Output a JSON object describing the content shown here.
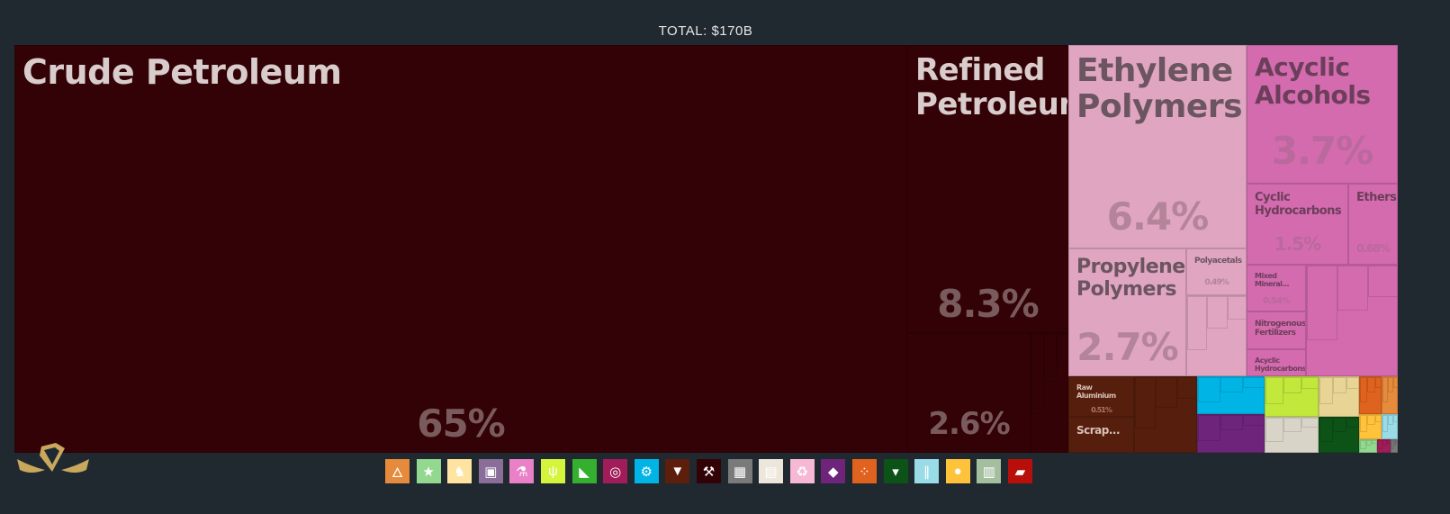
{
  "header": {
    "total": "TOTAL: $170B"
  },
  "chart_data": {
    "type": "treemap",
    "title": "TOTAL: $170B",
    "tiles": [
      {
        "name": "Crude Petroleum",
        "share_label": "65%",
        "share": 65,
        "color": "#330206"
      },
      {
        "name": "Refined Petroleum",
        "share_label": "8.3%",
        "share": 8.3,
        "color": "#330206"
      },
      {
        "name": "",
        "share_label": "2.6%",
        "share": 2.6,
        "color": "#330206"
      },
      {
        "name": "Ethylene Polymers",
        "share_label": "6.4%",
        "share": 6.4,
        "color": "#e0a5c1"
      },
      {
        "name": "Propylene Polymers",
        "share_label": "2.7%",
        "share": 2.7,
        "color": "#e0a5c1"
      },
      {
        "name": "Polyacetals",
        "share_label": "0.49%",
        "share": 0.49,
        "color": "#e0a5c1"
      },
      {
        "name": "Acyclic Alcohols",
        "share_label": "3.7%",
        "share": 3.7,
        "color": "#d36bae"
      },
      {
        "name": "Cyclic Hydrocarbons",
        "share_label": "1.5%",
        "share": 1.5,
        "color": "#d36bae"
      },
      {
        "name": "Ethers",
        "share_label": "0.68%",
        "share": 0.68,
        "color": "#d36bae"
      },
      {
        "name": "Mixed Mineral...",
        "share_label": "0.54%",
        "share": 0.54,
        "color": "#d36bae"
      },
      {
        "name": "Nitrogenous Fertilizers",
        "share_label": "",
        "color": "#d36bae"
      },
      {
        "name": "Acyclic Hydrocarbons",
        "share_label": "",
        "color": "#d36bae"
      },
      {
        "name": "Raw Aluminium",
        "share_label": "0.51%",
        "share": 0.51,
        "color": "#561e0c"
      },
      {
        "name": "Scrap...",
        "share_label": "",
        "color": "#561e0c"
      }
    ]
  },
  "colors": {
    "background": "#212930",
    "label": "#d9cccc",
    "pct_dark": "#7a5b5d",
    "pct_light": "#b3849a"
  },
  "legend": [
    {
      "icon": "bottle-fire-icon",
      "color": "#e68a3c"
    },
    {
      "icon": "star-figure-icon",
      "color": "#93d88f"
    },
    {
      "icon": "cow-icon",
      "color": "#ffe3a0"
    },
    {
      "icon": "picture-frame-icon",
      "color": "#8a6d99"
    },
    {
      "icon": "flask-icon",
      "color": "#ea80c8"
    },
    {
      "icon": "wheat-icon",
      "color": "#d4f53b"
    },
    {
      "icon": "shoe-icon",
      "color": "#35b02e"
    },
    {
      "icon": "gauge-icon",
      "color": "#a01d5a"
    },
    {
      "icon": "gears-icon",
      "color": "#00b5e6"
    },
    {
      "icon": "anvil-icon",
      "color": "#5e1e0c"
    },
    {
      "icon": "pickaxe-icon",
      "color": "#330206"
    },
    {
      "icon": "boxes-icon",
      "color": "#7a7a7a"
    },
    {
      "icon": "document-icon",
      "color": "#ede6da"
    },
    {
      "icon": "recycle-icon",
      "color": "#f7b8d6"
    },
    {
      "icon": "diamond-icon",
      "color": "#6e247a"
    },
    {
      "icon": "stones-icon",
      "color": "#e0621f"
    },
    {
      "icon": "shirt-icon",
      "color": "#0d5216"
    },
    {
      "icon": "road-icon",
      "color": "#9adbe8"
    },
    {
      "icon": "fruit-icon",
      "color": "#ffc23b"
    },
    {
      "icon": "cabinet-icon",
      "color": "#a3bf9e"
    },
    {
      "icon": "ticket-icon",
      "color": "#b80f0a"
    }
  ]
}
